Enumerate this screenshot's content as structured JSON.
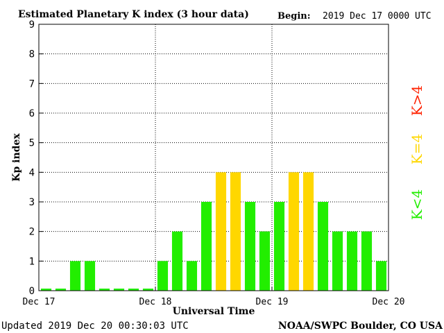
{
  "chart_data": {
    "type": "bar",
    "title": "Estimated Planetary K index (3 hour data)",
    "begin_label": "Begin:",
    "begin_value": "2019 Dec 17 0000 UTC",
    "xlabel": "Universal Time",
    "ylabel": "Kp index",
    "ylim": [
      0,
      9
    ],
    "yticks": [
      "0",
      "1",
      "2",
      "3",
      "4",
      "5",
      "6",
      "7",
      "8",
      "9"
    ],
    "xticks": [
      "Dec 17",
      "Dec 18",
      "Dec 19",
      "Dec 20"
    ],
    "grid": true,
    "values": [
      0,
      0,
      1,
      1,
      0,
      0,
      0,
      0,
      1,
      2,
      1,
      3,
      4,
      4,
      3,
      2,
      3,
      4,
      4,
      3,
      2,
      2,
      2,
      1
    ],
    "legend": [
      {
        "label": "K<4",
        "color": "#22ee00"
      },
      {
        "label": "K=4",
        "color": "#ffd700"
      },
      {
        "label": "K>4",
        "color": "#ff2200"
      }
    ]
  },
  "colors": {
    "low": "#22ee00",
    "mid": "#ffd700",
    "high": "#ff2200"
  },
  "footer": {
    "updated": "Updated 2019 Dec 20 00:30:03 UTC",
    "source": "NOAA/SWPC Boulder, CO USA"
  }
}
